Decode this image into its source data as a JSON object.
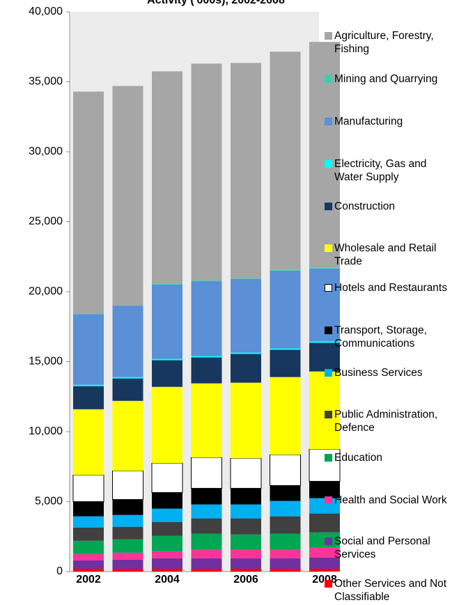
{
  "chart_data": {
    "type": "bar",
    "stacked": true,
    "title": "Activity ('000s), 2002-2008",
    "categories": [
      "2002",
      null,
      "2004",
      null,
      "2006",
      null,
      "2008"
    ],
    "ylim": [
      0,
      40000
    ],
    "yticks": [
      0,
      {
        "value": 5000,
        "label": "5,000"
      },
      {
        "value": 10000,
        "label": "10,000"
      },
      {
        "value": 15000,
        "label": "15,000"
      },
      {
        "value": 20000,
        "label": "20,000"
      },
      {
        "value": 25000,
        "label": "25,000"
      },
      {
        "value": 30000,
        "label": "30,000"
      },
      {
        "value": 35000,
        "label": "35,000"
      },
      {
        "value": 40000,
        "label": "40,000"
      }
    ],
    "legend": "right",
    "series": [
      {
        "name": "Agriculture, Forestry, Fishing",
        "color": "#a6a6a6",
        "values": [
          15850,
          15650,
          15200,
          15500,
          15400,
          15600,
          16150
        ]
      },
      {
        "name": "Mining and Quarrying",
        "color": "#33d1b0",
        "values": [
          50,
          50,
          50,
          50,
          50,
          50,
          50
        ]
      },
      {
        "name": "Manufacturing",
        "color": "#5b8fd6",
        "values": [
          5050,
          5100,
          5300,
          5350,
          5250,
          5550,
          5200
        ]
      },
      {
        "name": "Electricity, Gas and Water Supply",
        "color": "#00ffff",
        "values": [
          100,
          100,
          100,
          100,
          100,
          100,
          100
        ]
      },
      {
        "name": "Construction",
        "color": "#17375e",
        "values": [
          1650,
          1600,
          1900,
          1850,
          2050,
          1950,
          2050
        ]
      },
      {
        "name": "Wholesale and Retail Trade",
        "color": "#ffff00",
        "values": [
          4700,
          5000,
          5450,
          5300,
          5400,
          5550,
          5550
        ]
      },
      {
        "name": "Hotels and Restaurants",
        "color": "#ffffff",
        "values": [
          1900,
          2050,
          2100,
          2200,
          2150,
          2200,
          2300
        ]
      },
      {
        "name": "Transport, Storage, Communications",
        "color": "#000000",
        "values": [
          1050,
          1100,
          1150,
          1150,
          1150,
          1100,
          1200
        ]
      },
      {
        "name": "Business Services",
        "color": "#00b0f0",
        "values": [
          800,
          850,
          950,
          1000,
          1000,
          1100,
          1100
        ]
      },
      {
        "name": "Public Administration, Defence",
        "color": "#404040",
        "values": [
          950,
          900,
          1000,
          1100,
          1150,
          1250,
          1350
        ]
      },
      {
        "name": "Education",
        "color": "#00a651",
        "values": [
          950,
          950,
          1100,
          1150,
          1100,
          1150,
          1100
        ]
      },
      {
        "name": "Health and Social Work",
        "color": "#ff3399",
        "values": [
          450,
          500,
          500,
          600,
          600,
          600,
          700
        ]
      },
      {
        "name": "Social and Personal Services",
        "color": "#7030a0",
        "values": [
          600,
          650,
          750,
          750,
          750,
          750,
          800
        ]
      },
      {
        "name": "Other Services and Not Classifiable",
        "color": "#ff0000",
        "values": [
          200,
          200,
          200,
          200,
          200,
          200,
          200
        ]
      }
    ]
  }
}
